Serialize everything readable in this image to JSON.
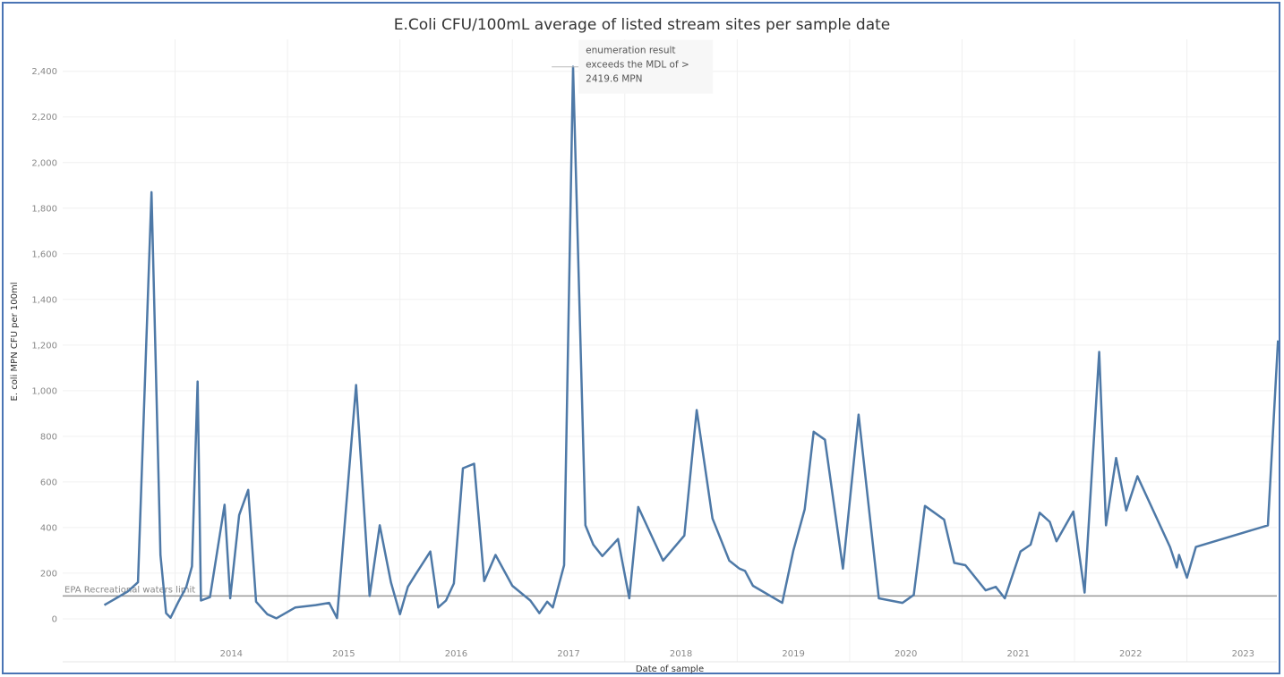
{
  "chart_data": {
    "type": "line",
    "title": "E.Coli CFU/100mL average of listed stream sites per sample date",
    "xlabel": "Date of sample",
    "ylabel": "E. coli MPN CFU per 100ml",
    "ylim": [
      -110,
      2540
    ],
    "xlim": [
      2013.0,
      2023.8
    ],
    "yticks": [
      0,
      200,
      400,
      600,
      800,
      1000,
      1200,
      1400,
      1600,
      1800,
      2000,
      2200,
      2400
    ],
    "ytick_labels": [
      "0",
      "200",
      "400",
      "600",
      "800",
      "1,000",
      "1,200",
      "1,400",
      "1,600",
      "1,800",
      "2,000",
      "2,200",
      "2,400"
    ],
    "xticks": [
      2014,
      2015,
      2016,
      2017,
      2018,
      2019,
      2020,
      2021,
      2022,
      2023
    ],
    "grid": true,
    "line_color": "#4e79a7",
    "reference_line": {
      "value": 100,
      "label": "EPA Recreational waters limit",
      "color": "#999999"
    },
    "annotation": {
      "x": 2017.35,
      "y": 2419.6,
      "lines": [
        "enumeration result",
        "exceeds the MDL of >",
        "2419.6 MPN"
      ]
    },
    "series": [
      {
        "x": [
          2013.37,
          2013.58,
          2013.67,
          2013.79,
          2013.87,
          2013.92,
          2013.96,
          2014.03,
          2014.1,
          2014.15,
          2014.2,
          2014.23,
          2014.31,
          2014.44,
          2014.49,
          2014.57,
          2014.65,
          2014.72,
          2014.82,
          2014.9,
          2015.07,
          2015.25,
          2015.37,
          2015.44,
          2015.61,
          2015.73,
          2015.82,
          2015.92,
          2016.0,
          2016.07,
          2016.14,
          2016.27,
          2016.34,
          2016.41,
          2016.48,
          2016.56,
          2016.66,
          2016.75,
          2016.85,
          2017.0,
          2017.16,
          2017.24,
          2017.31,
          2017.36,
          2017.46,
          2017.54,
          2017.65,
          2017.72,
          2017.8,
          2017.94,
          2018.04,
          2018.12,
          2018.34,
          2018.53,
          2018.64,
          2018.78,
          2018.93,
          2019.02,
          2019.07,
          2019.14,
          2019.4,
          2019.5,
          2019.6,
          2019.68,
          2019.78,
          2019.94,
          2020.08,
          2020.26,
          2020.47,
          2020.57,
          2020.67,
          2020.84,
          2020.93,
          2021.03,
          2021.21,
          2021.3,
          2021.38,
          2021.52,
          2021.61,
          2021.69,
          2021.78,
          2021.84,
          2021.99,
          2022.09,
          2022.22,
          2022.28,
          2022.37,
          2022.46,
          2022.56,
          2022.85,
          2022.91,
          2022.93,
          2023.0,
          2023.08,
          2023.72,
          2023.81
        ],
        "y": [
          60,
          120,
          160,
          1870,
          280,
          25,
          5,
          75,
          140,
          230,
          1040,
          80,
          95,
          500,
          90,
          455,
          565,
          75,
          20,
          2,
          50,
          60,
          70,
          3,
          1025,
          100,
          410,
          160,
          20,
          140,
          195,
          295,
          50,
          80,
          155,
          660,
          680,
          165,
          280,
          145,
          80,
          25,
          75,
          50,
          235,
          2420,
          410,
          325,
          275,
          350,
          90,
          490,
          255,
          365,
          915,
          440,
          255,
          220,
          210,
          145,
          70,
          300,
          480,
          820,
          785,
          220,
          895,
          90,
          70,
          105,
          495,
          435,
          245,
          235,
          125,
          140,
          90,
          295,
          325,
          465,
          425,
          340,
          470,
          115,
          1170,
          410,
          705,
          475,
          625,
          315,
          225,
          280,
          180,
          315,
          410,
          1220
        ]
      }
    ]
  }
}
